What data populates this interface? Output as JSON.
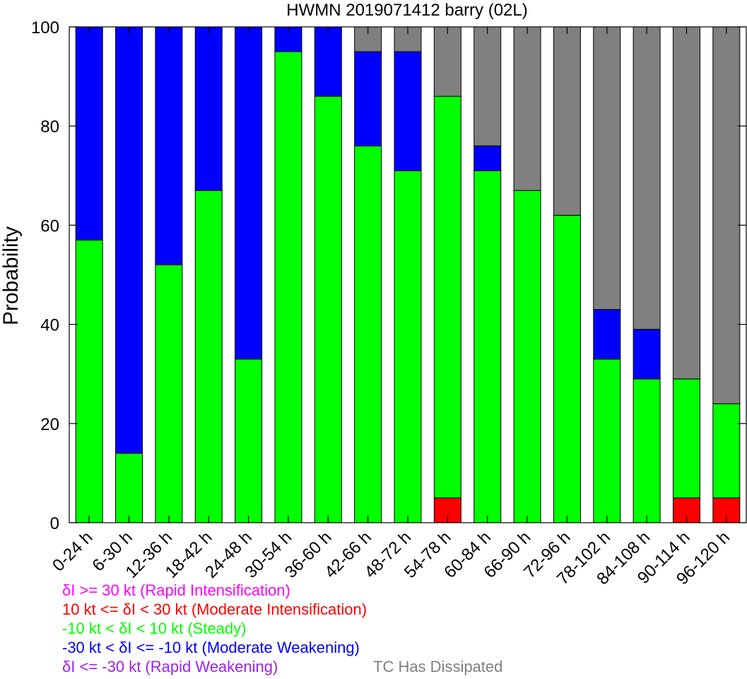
{
  "chart_data": {
    "type": "bar",
    "stacked": true,
    "title": "HWMN 2019071412 barry (02L)",
    "xlabel": "",
    "ylabel": "Probability",
    "ylim": [
      0,
      100
    ],
    "yticks": [
      0,
      20,
      40,
      60,
      80,
      100
    ],
    "grid": false,
    "categories": [
      "0-24 h",
      "6-30 h",
      "12-36 h",
      "18-42 h",
      "24-48 h",
      "30-54 h",
      "36-60 h",
      "42-66 h",
      "48-72 h",
      "54-78 h",
      "60-84 h",
      "66-90 h",
      "72-96 h",
      "78-102 h",
      "84-108 h",
      "90-114 h",
      "96-120 h"
    ],
    "series": [
      {
        "name": "δI >= 30 kt (Rapid Intensification)",
        "color": "#ff00ff",
        "values": [
          0,
          0,
          0,
          0,
          0,
          0,
          0,
          0,
          0,
          0,
          0,
          0,
          0,
          0,
          0,
          0,
          0
        ]
      },
      {
        "name": "10 kt <= δI < 30 kt (Moderate Intensification)",
        "color": "#ff0000",
        "values": [
          0,
          0,
          0,
          0,
          0,
          0,
          0,
          0,
          0,
          5,
          0,
          0,
          0,
          0,
          0,
          5,
          5
        ]
      },
      {
        "name": "-10 kt < δI < 10 kt (Steady)",
        "color": "#00ff00",
        "values": [
          57,
          14,
          52,
          67,
          33,
          95,
          86,
          76,
          71,
          81,
          71,
          67,
          62,
          33,
          29,
          24,
          19
        ]
      },
      {
        "name": "-30 kt < δI <= -10 kt (Moderate Weakening)",
        "color": "#0000ff",
        "values": [
          43,
          86,
          48,
          33,
          67,
          5,
          14,
          19,
          24,
          0,
          5,
          0,
          0,
          10,
          10,
          0,
          0
        ]
      },
      {
        "name": "δI <= -30 kt (Rapid Weakening)",
        "color": "#a020f0",
        "values": [
          0,
          0,
          0,
          0,
          0,
          0,
          0,
          0,
          0,
          0,
          0,
          0,
          0,
          0,
          0,
          0,
          0
        ]
      },
      {
        "name": "TC Has Dissipated",
        "color": "#808080",
        "values": [
          0,
          0,
          0,
          0,
          0,
          0,
          0,
          5,
          5,
          14,
          24,
          33,
          38,
          57,
          61,
          71,
          76
        ]
      }
    ],
    "legend": {
      "placement": "bottom-left",
      "entries": [
        {
          "text": "δI >= 30 kt (Rapid Intensification)",
          "color": "#ff00ff"
        },
        {
          "text": "10 kt <= δI < 30 kt (Moderate Intensification)",
          "color": "#ff0000"
        },
        {
          "text": "-10 kt < δI < 10 kt (Steady)",
          "color": "#00ff00"
        },
        {
          "text": "-30 kt < δI <= -10 kt (Moderate Weakening)",
          "color": "#0000ff"
        },
        {
          "text": "δI <= -30 kt (Rapid Weakening)",
          "color": "#a020f0"
        },
        {
          "text": "TC Has Dissipated",
          "color": "#808080"
        }
      ]
    }
  }
}
